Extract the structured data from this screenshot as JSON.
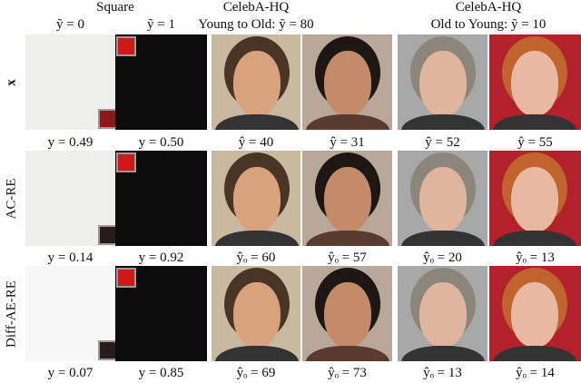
{
  "header": {
    "groups": [
      {
        "title": "Square",
        "subtitles": [
          "ỹ = 0",
          "ỹ = 1"
        ]
      },
      {
        "title": "CelebA-HQ",
        "subtitles": [
          "Young to Old: ỹ = 80"
        ]
      },
      {
        "title": "CelebA-HQ",
        "subtitles": [
          "Old to Young: ỹ = 10"
        ]
      }
    ]
  },
  "rows": [
    {
      "label": "x",
      "captions": [
        "y = 0.49",
        "y = 0.50",
        "ŷ = 40",
        "ŷ = 31",
        "ŷ = 52",
        "ŷ = 55"
      ]
    },
    {
      "label": "AC-RE",
      "captions": [
        "y = 0.14",
        "y = 0.92",
        "ŷₒ = 60",
        "ŷₒ = 57",
        "ŷₒ = 20",
        "ŷₒ = 13"
      ]
    },
    {
      "label": "Diff-AE-RE",
      "captions": [
        "y = 0.07",
        "y = 0.85",
        "ŷₒ = 69",
        "ŷₒ = 73",
        "ŷₒ = 13",
        "ŷₒ = 14"
      ]
    }
  ]
}
